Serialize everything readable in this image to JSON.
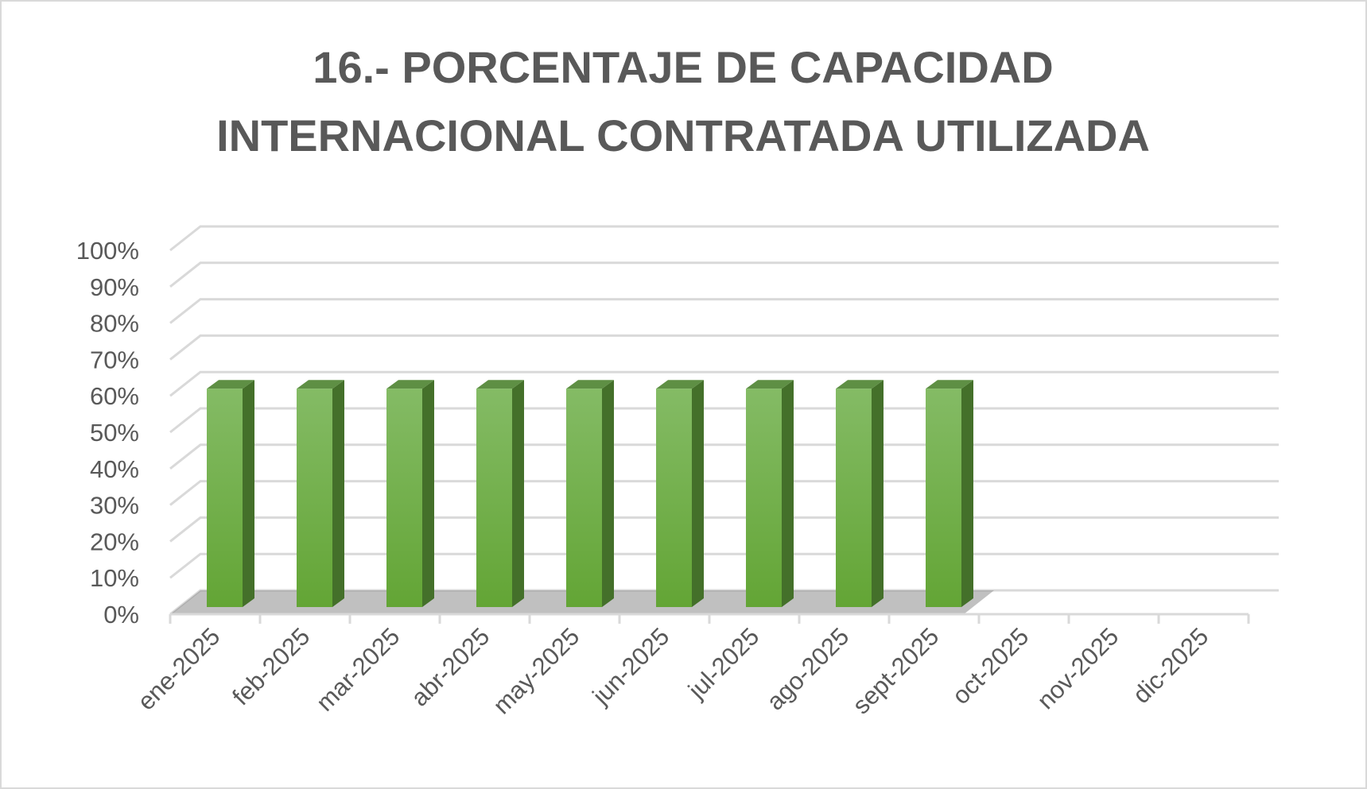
{
  "chart_data": {
    "type": "bar",
    "title": [
      "16.- PORCENTAJE DE CAPACIDAD",
      "INTERNACIONAL CONTRATADA UTILIZADA"
    ],
    "xlabel": "",
    "ylabel": "",
    "categories": [
      "ene-2025",
      "feb-2025",
      "mar-2025",
      "abr-2025",
      "may-2025",
      "jun-2025",
      "jul-2025",
      "ago-2025",
      "sept-2025",
      "oct-2025",
      "nov-2025",
      "dic-2025"
    ],
    "values": [
      0.6,
      0.6,
      0.6,
      0.6,
      0.6,
      0.6,
      0.6,
      0.6,
      0.6,
      null,
      null,
      null
    ],
    "ylim": [
      0,
      1
    ],
    "yticks": [
      "0%",
      "10%",
      "20%",
      "30%",
      "40%",
      "50%",
      "60%",
      "70%",
      "80%",
      "90%",
      "100%"
    ],
    "grid": true,
    "style": "3d-column",
    "colors": {
      "bar_front": "#70AD47",
      "bar_top": "#5E8F44",
      "bar_side": "#44702A",
      "grid": "#D9D9D9",
      "text": "#595959"
    }
  }
}
